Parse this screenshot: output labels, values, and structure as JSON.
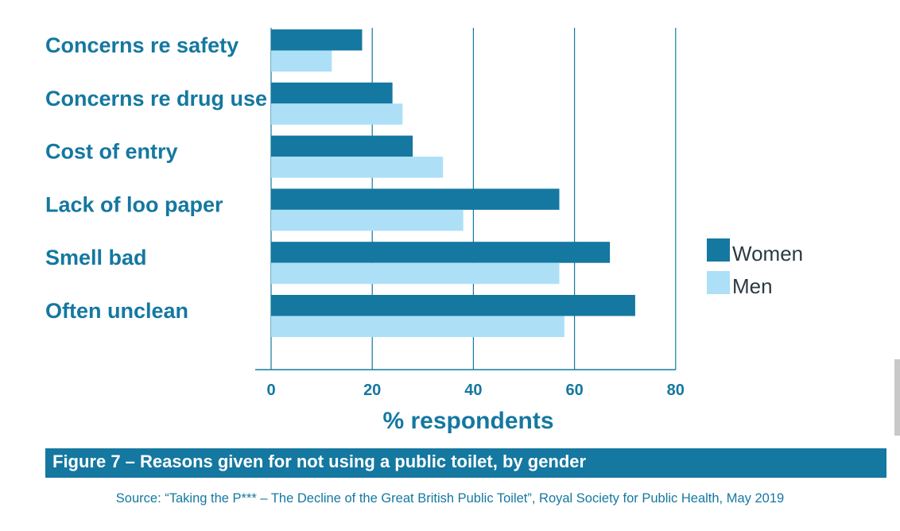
{
  "chart_data": {
    "type": "bar",
    "orientation": "horizontal",
    "categories": [
      "Concerns re safety",
      "Concerns re drug use",
      "Cost of entry",
      "Lack of loo paper",
      "Smell bad",
      "Often unclean"
    ],
    "series": [
      {
        "name": "Women",
        "values": [
          18,
          24,
          28,
          57,
          67,
          72
        ]
      },
      {
        "name": "Men",
        "values": [
          12,
          26,
          34,
          38,
          57,
          58
        ]
      }
    ],
    "xlabel": "% respondents",
    "xlim": [
      0,
      80
    ],
    "xticks": [
      "0",
      "20",
      "40",
      "60",
      "80"
    ],
    "grid": true,
    "legend_position": "right",
    "colors": {
      "Women": "#1478a0",
      "Men": "#ade0f6",
      "grid": "#1478a0",
      "text": "#1478a0"
    }
  },
  "caption": "Figure 7 – Reasons given for not using a public toilet, by gender",
  "source": "Source: “Taking the P*** – The Decline of the Great British Public Toilet”, Royal Society for Public Health, May 2019"
}
